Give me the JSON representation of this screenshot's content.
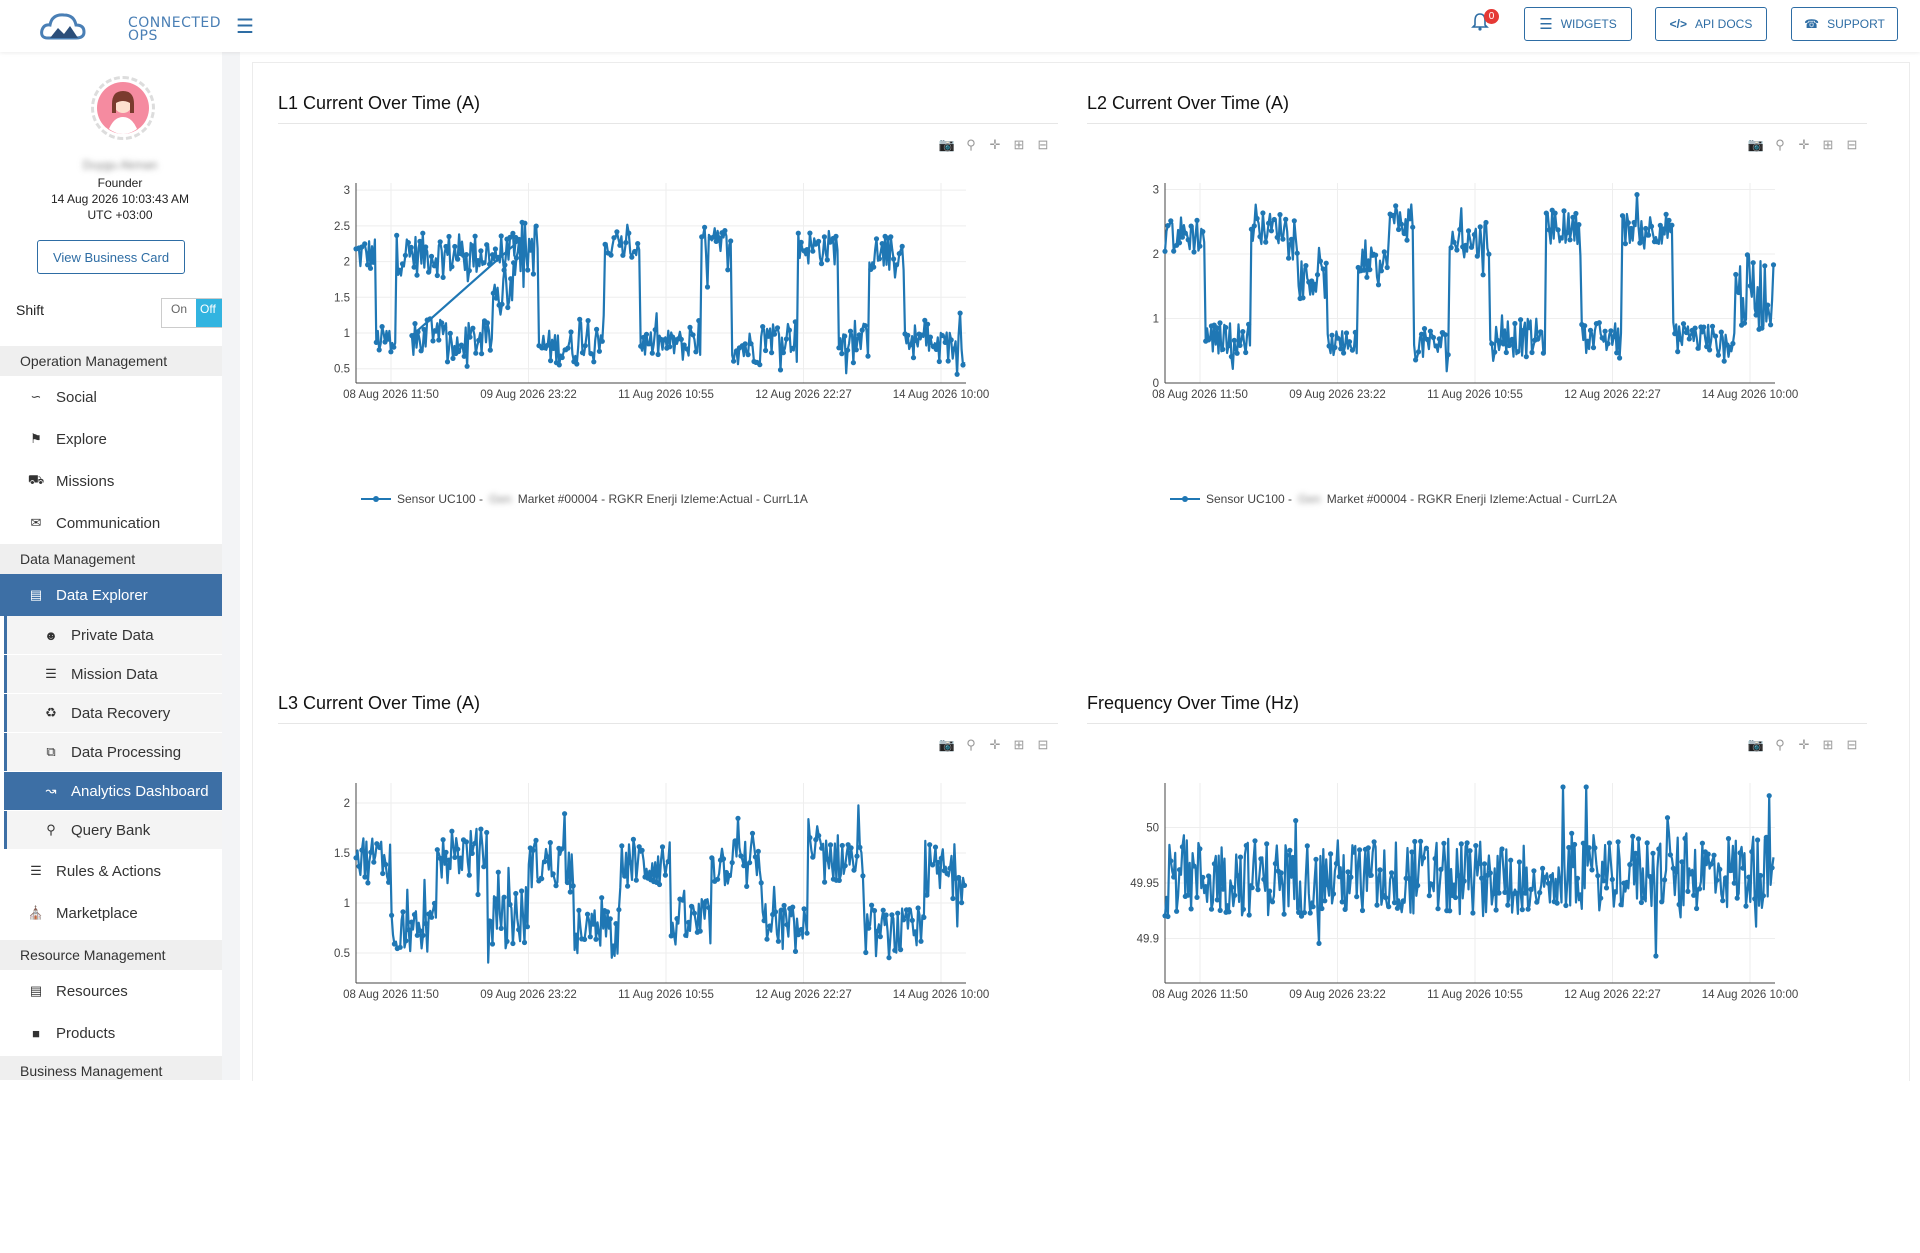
{
  "app": {
    "logo_text_1": "CONNECTED",
    "logo_text_2": "OPS",
    "notification_count": "0",
    "buttons": {
      "widgets": "WIDGETS",
      "api_docs": "API DOCS",
      "support": "SUPPORT"
    }
  },
  "profile": {
    "name": "Duygu Akman",
    "role": "Founder",
    "datetime": "14 Aug 2026 10:03:43 AM",
    "timezone": "UTC +03:00",
    "business_card_label": "View Business Card",
    "shift_label": "Shift",
    "shift_on": "On",
    "shift_off": "Off"
  },
  "sidebar": {
    "sections": {
      "operation": "Operation Management",
      "data": "Data Management",
      "resource": "Resource Management",
      "business": "Business Management"
    },
    "items": {
      "social": "Social",
      "explore": "Explore",
      "missions": "Missions",
      "communication": "Communication",
      "data_explorer": "Data Explorer",
      "private_data": "Private Data",
      "mission_data": "Mission Data",
      "data_recovery": "Data Recovery",
      "data_processing": "Data Processing",
      "analytics_dashboard": "Analytics Dashboard",
      "query_bank": "Query Bank",
      "rules_actions": "Rules & Actions",
      "marketplace": "Marketplace",
      "resources": "Resources",
      "products": "Products"
    }
  },
  "panels": [
    {
      "title": "L1 Current Over Time (A)",
      "legend_prefix": "Sensor UC100 -",
      "legend_hidden": "Gen",
      "legend_suffix": "Market #00004 - RGKR Enerji Izleme:Actual - CurrL1A"
    },
    {
      "title": "L2 Current Over Time (A)",
      "legend_prefix": "Sensor UC100 -",
      "legend_hidden": "Gen",
      "legend_suffix": "Market #00004 - RGKR Enerji Izleme:Actual - CurrL2A"
    },
    {
      "title": "L3 Current Over Time (A)"
    },
    {
      "title": "Frequency Over Time (Hz)"
    }
  ],
  "colors": {
    "accent": "#2e6da4",
    "series": "#1f77b4",
    "active_nav": "#3d6fa5",
    "toggle_off": "#32b4e0",
    "badge": "#e53935"
  },
  "icons": [
    "bell-icon",
    "widgets-icon",
    "code-icon",
    "support-icon",
    "camera-icon",
    "zoom-icon",
    "pan-icon",
    "zoom-in-icon",
    "zoom-out-icon"
  ],
  "chart_data": [
    {
      "type": "line",
      "title": "L1 Current Over Time (A)",
      "x_ticks": [
        "08 Aug 2026 11:50",
        "09 Aug 2026 23:22",
        "11 Aug 2026 10:55",
        "12 Aug 2026 22:27",
        "14 Aug 2026 10:00"
      ],
      "y_ticks": [
        "0.5",
        "1",
        "1.5",
        "2",
        "2.5",
        "3"
      ],
      "ylim": [
        0.3,
        3.1
      ],
      "x_range_days": [
        0,
        6.0
      ],
      "series": [
        {
          "name": "Sensor UC100 - Gen Market #00004 - RGKR Enerji Izleme:Actual - CurrL1A",
          "segments": [
            [
              0.0,
              0.2,
              2.1,
              0.5
            ],
            [
              0.2,
              0.4,
              0.9,
              0.4
            ],
            [
              0.4,
              1.6,
              2.1,
              0.6
            ],
            [
              0.55,
              0.7,
              0.9,
              0.5
            ],
            [
              0.7,
              0.9,
              1.1,
              0.3
            ],
            [
              0.9,
              1.05,
              0.75,
              0.4
            ],
            [
              1.05,
              1.35,
              0.9,
              0.5
            ],
            [
              1.35,
              1.55,
              1.6,
              0.5
            ],
            [
              1.55,
              1.8,
              2.2,
              0.8
            ],
            [
              1.8,
              2.2,
              0.8,
              0.5
            ],
            [
              2.2,
              2.45,
              1.0,
              0.6
            ],
            [
              2.45,
              2.8,
              2.2,
              0.4
            ],
            [
              2.8,
              3.2,
              0.85,
              0.4
            ],
            [
              3.2,
              3.4,
              0.8,
              0.4
            ],
            [
              3.4,
              3.7,
              2.2,
              0.6
            ],
            [
              3.7,
              4.0,
              0.8,
              0.5
            ],
            [
              4.0,
              4.35,
              0.95,
              0.5
            ],
            [
              4.35,
              4.75,
              2.2,
              0.5
            ],
            [
              4.75,
              5.05,
              0.9,
              0.5
            ],
            [
              5.05,
              5.4,
              2.1,
              0.5
            ],
            [
              5.4,
              5.65,
              0.9,
              0.5
            ],
            [
              5.65,
              6.0,
              0.8,
              0.5
            ]
          ]
        }
      ]
    },
    {
      "type": "line",
      "title": "L2 Current Over Time (A)",
      "x_ticks": [
        "08 Aug 2026 11:50",
        "09 Aug 2026 23:22",
        "11 Aug 2026 10:55",
        "12 Aug 2026 22:27",
        "14 Aug 2026 10:00"
      ],
      "y_ticks": [
        "0",
        "1",
        "2",
        "3"
      ],
      "ylim": [
        0,
        3.1
      ],
      "x_range_days": [
        0,
        6.0
      ],
      "series": [
        {
          "name": "Sensor UC100 - Gen Market #00004 - RGKR Enerji Izleme:Actual - CurrL2A",
          "segments": [
            [
              0.0,
              0.4,
              2.3,
              0.6
            ],
            [
              0.4,
              0.85,
              0.7,
              0.5
            ],
            [
              0.85,
              1.3,
              2.4,
              0.5
            ],
            [
              1.3,
              1.6,
              1.6,
              0.6
            ],
            [
              1.6,
              1.9,
              0.6,
              0.4
            ],
            [
              1.9,
              2.2,
              1.8,
              0.6
            ],
            [
              2.2,
              2.45,
              2.5,
              0.6
            ],
            [
              2.45,
              2.8,
              0.6,
              0.5
            ],
            [
              2.8,
              3.2,
              2.2,
              0.6
            ],
            [
              3.2,
              3.4,
              0.7,
              0.5
            ],
            [
              3.4,
              3.75,
              0.7,
              0.6
            ],
            [
              3.75,
              4.1,
              2.4,
              0.5
            ],
            [
              4.1,
              4.5,
              0.7,
              0.5
            ],
            [
              4.5,
              5.0,
              2.4,
              0.5
            ],
            [
              5.0,
              5.4,
              0.7,
              0.5
            ],
            [
              5.4,
              5.6,
              0.6,
              0.4
            ],
            [
              5.6,
              6.0,
              1.4,
              1.2
            ]
          ]
        }
      ]
    },
    {
      "type": "line",
      "title": "L3 Current Over Time (A)",
      "x_ticks": [
        "08 Aug 2026 11:50",
        "09 Aug 2026 23:22",
        "11 Aug 2026 10:55",
        "12 Aug 2026 22:27",
        "14 Aug 2026 10:00"
      ],
      "y_ticks": [
        "0.5",
        "1",
        "1.5",
        "2"
      ],
      "ylim": [
        0.2,
        2.2
      ],
      "x_range_days": [
        0,
        6.0
      ],
      "series": [
        {
          "segments": [
            [
              0.0,
              0.35,
              1.45,
              0.5
            ],
            [
              0.35,
              0.8,
              0.75,
              0.5
            ],
            [
              0.8,
              1.3,
              1.5,
              0.5
            ],
            [
              1.3,
              1.7,
              0.85,
              0.6
            ],
            [
              1.7,
              2.15,
              1.4,
              0.5
            ],
            [
              2.15,
              2.6,
              0.7,
              0.5
            ],
            [
              2.6,
              3.1,
              1.4,
              0.5
            ],
            [
              3.1,
              3.5,
              0.8,
              0.5
            ],
            [
              3.5,
              4.0,
              1.4,
              0.5
            ],
            [
              4.0,
              4.45,
              0.75,
              0.5
            ],
            [
              4.45,
              5.0,
              1.45,
              0.5
            ],
            [
              5.0,
              5.6,
              0.7,
              0.5
            ],
            [
              5.6,
              6.0,
              1.3,
              0.6
            ]
          ]
        }
      ]
    },
    {
      "type": "line",
      "title": "Frequency Over Time (Hz)",
      "x_ticks": [
        "08 Aug 2026 11:50",
        "09 Aug 2026 23:22",
        "11 Aug 2026 10:55",
        "12 Aug 2026 22:27",
        "14 Aug 2026 10:00"
      ],
      "y_ticks": [
        "49.9",
        "49.95",
        "50"
      ],
      "ylim": [
        49.86,
        50.04
      ],
      "x_range_days": [
        0,
        6.0
      ],
      "series": [
        {
          "segments": [
            [
              0.0,
              3.6,
              49.955,
              0.07
            ],
            [
              3.6,
              3.9,
              49.945,
              0.04
            ],
            [
              3.9,
              6.0,
              49.96,
              0.07
            ]
          ]
        }
      ]
    }
  ]
}
